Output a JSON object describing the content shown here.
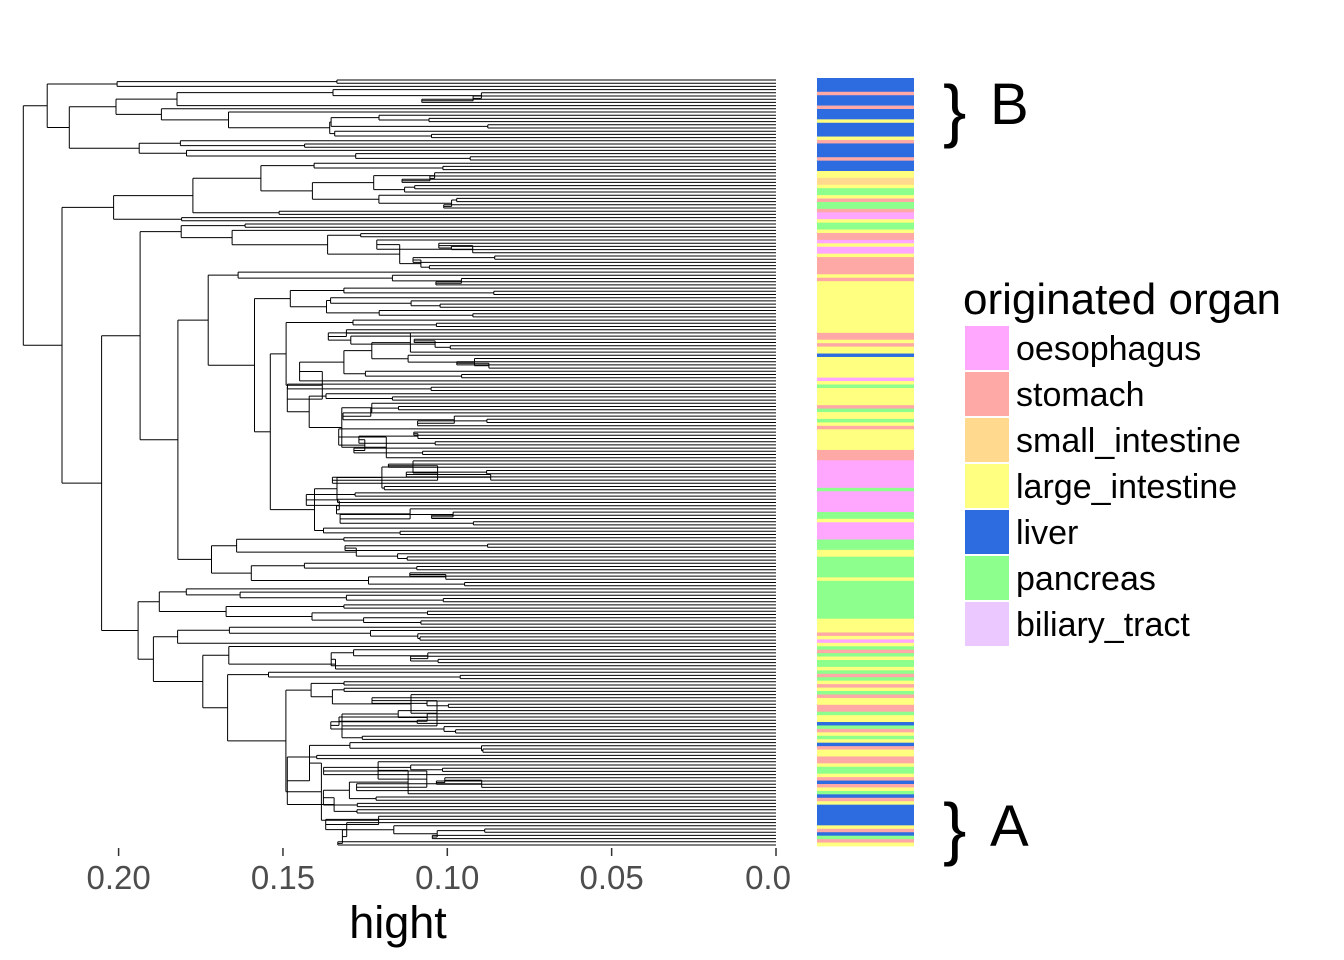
{
  "chart_data": {
    "type": "dendrogram",
    "xlabel": "hight",
    "xlim": [
      0.23,
      0.0
    ],
    "x_ticks": [
      0.2,
      0.15,
      0.1,
      0.05,
      0.0
    ],
    "x_tick_labels": [
      "0.20",
      "0.15",
      "0.10",
      "0.05",
      "0.0"
    ],
    "legend": {
      "title": "originated organ",
      "entries": [
        {
          "name": "oesophagus",
          "color": "#FFA6FF"
        },
        {
          "name": "stomach",
          "color": "#FFA9A6"
        },
        {
          "name": "small_intestine",
          "color": "#FFD98D"
        },
        {
          "name": "large_intestine",
          "color": "#FFFF80"
        },
        {
          "name": "liver",
          "color": "#2D6BE0"
        },
        {
          "name": "pancreas",
          "color": "#8CFF8C"
        },
        {
          "name": "biliary_tract",
          "color": "#EBC8FF"
        }
      ]
    },
    "annotations": [
      {
        "label": "B",
        "symbol": "}"
      },
      {
        "label": "A",
        "symbol": "}"
      }
    ],
    "leaf_color_strip": [
      [
        4,
        "liver"
      ],
      [
        1,
        "stomach"
      ],
      [
        3,
        "liver"
      ],
      [
        1,
        "stomach"
      ],
      [
        3,
        "liver"
      ],
      [
        1,
        "large_intestine"
      ],
      [
        4,
        "liver"
      ],
      [
        1,
        "large_intestine"
      ],
      [
        1,
        "stomach"
      ],
      [
        4,
        "liver"
      ],
      [
        1,
        "stomach"
      ],
      [
        3,
        "liver"
      ],
      [
        2,
        "large_intestine"
      ],
      [
        2,
        "small_intestine"
      ],
      [
        1,
        "large_intestine"
      ],
      [
        2,
        "pancreas"
      ],
      [
        1,
        "large_intestine"
      ],
      [
        1,
        "stomach"
      ],
      [
        2,
        "pancreas"
      ],
      [
        1,
        "stomach"
      ],
      [
        2,
        "oesophagus"
      ],
      [
        1,
        "large_intestine"
      ],
      [
        2,
        "pancreas"
      ],
      [
        1,
        "large_intestine"
      ],
      [
        2,
        "stomach"
      ],
      [
        1,
        "oesophagus"
      ],
      [
        1,
        "large_intestine"
      ],
      [
        2,
        "oesophagus"
      ],
      [
        1,
        "large_intestine"
      ],
      [
        5,
        "stomach"
      ],
      [
        1,
        "large_intestine"
      ],
      [
        1,
        "stomach"
      ],
      [
        15,
        "large_intestine"
      ],
      [
        2,
        "stomach"
      ],
      [
        1,
        "large_intestine"
      ],
      [
        1,
        "stomach"
      ],
      [
        2,
        "large_intestine"
      ],
      [
        1,
        "liver"
      ],
      [
        6,
        "large_intestine"
      ],
      [
        1,
        "oesophagus"
      ],
      [
        1,
        "large_intestine"
      ],
      [
        1,
        "pancreas"
      ],
      [
        5,
        "large_intestine"
      ],
      [
        1,
        "stomach"
      ],
      [
        1,
        "pancreas"
      ],
      [
        2,
        "large_intestine"
      ],
      [
        1,
        "pancreas"
      ],
      [
        1,
        "large_intestine"
      ],
      [
        1,
        "stomach"
      ],
      [
        6,
        "large_intestine"
      ],
      [
        3,
        "stomach"
      ],
      [
        8,
        "oesophagus"
      ],
      [
        1,
        "pancreas"
      ],
      [
        6,
        "oesophagus"
      ],
      [
        2,
        "pancreas"
      ],
      [
        1,
        "large_intestine"
      ],
      [
        5,
        "oesophagus"
      ],
      [
        3,
        "pancreas"
      ],
      [
        2,
        "large_intestine"
      ],
      [
        6,
        "pancreas"
      ],
      [
        1,
        "large_intestine"
      ],
      [
        11,
        "pancreas"
      ],
      [
        4,
        "large_intestine"
      ],
      [
        1,
        "stomach"
      ],
      [
        1,
        "large_intestine"
      ],
      [
        1,
        "oesophagus"
      ],
      [
        1,
        "large_intestine"
      ],
      [
        1,
        "pancreas"
      ],
      [
        1,
        "stomach"
      ],
      [
        1,
        "pancreas"
      ],
      [
        1,
        "large_intestine"
      ],
      [
        2,
        "pancreas"
      ],
      [
        1,
        "large_intestine"
      ],
      [
        1,
        "pancreas"
      ],
      [
        1,
        "stomach"
      ],
      [
        1,
        "pancreas"
      ],
      [
        1,
        "large_intestine"
      ],
      [
        1,
        "stomach"
      ],
      [
        1,
        "large_intestine"
      ],
      [
        1,
        "pancreas"
      ],
      [
        1,
        "stomach"
      ],
      [
        2,
        "large_intestine"
      ],
      [
        2,
        "stomach"
      ],
      [
        1,
        "pancreas"
      ],
      [
        2,
        "large_intestine"
      ],
      [
        1,
        "liver"
      ],
      [
        1,
        "pancreas"
      ],
      [
        1,
        "stomach"
      ],
      [
        1,
        "large_intestine"
      ],
      [
        1,
        "pancreas"
      ],
      [
        1,
        "large_intestine"
      ],
      [
        1,
        "liver"
      ],
      [
        1,
        "stomach"
      ],
      [
        2,
        "large_intestine"
      ],
      [
        2,
        "stomach"
      ],
      [
        1,
        "large_intestine"
      ],
      [
        2,
        "pancreas"
      ],
      [
        1,
        "large_intestine"
      ],
      [
        1,
        "stomach"
      ],
      [
        1,
        "liver"
      ],
      [
        1,
        "stomach"
      ],
      [
        1,
        "large_intestine"
      ],
      [
        1,
        "pancreas"
      ],
      [
        1,
        "liver"
      ],
      [
        1,
        "stomach"
      ],
      [
        1,
        "large_intestine"
      ],
      [
        6,
        "liver"
      ],
      [
        1,
        "large_intestine"
      ],
      [
        1,
        "stomach"
      ],
      [
        1,
        "liver"
      ],
      [
        1,
        "pancreas"
      ],
      [
        1,
        "stomach"
      ],
      [
        1,
        "large_intestine"
      ]
    ]
  }
}
